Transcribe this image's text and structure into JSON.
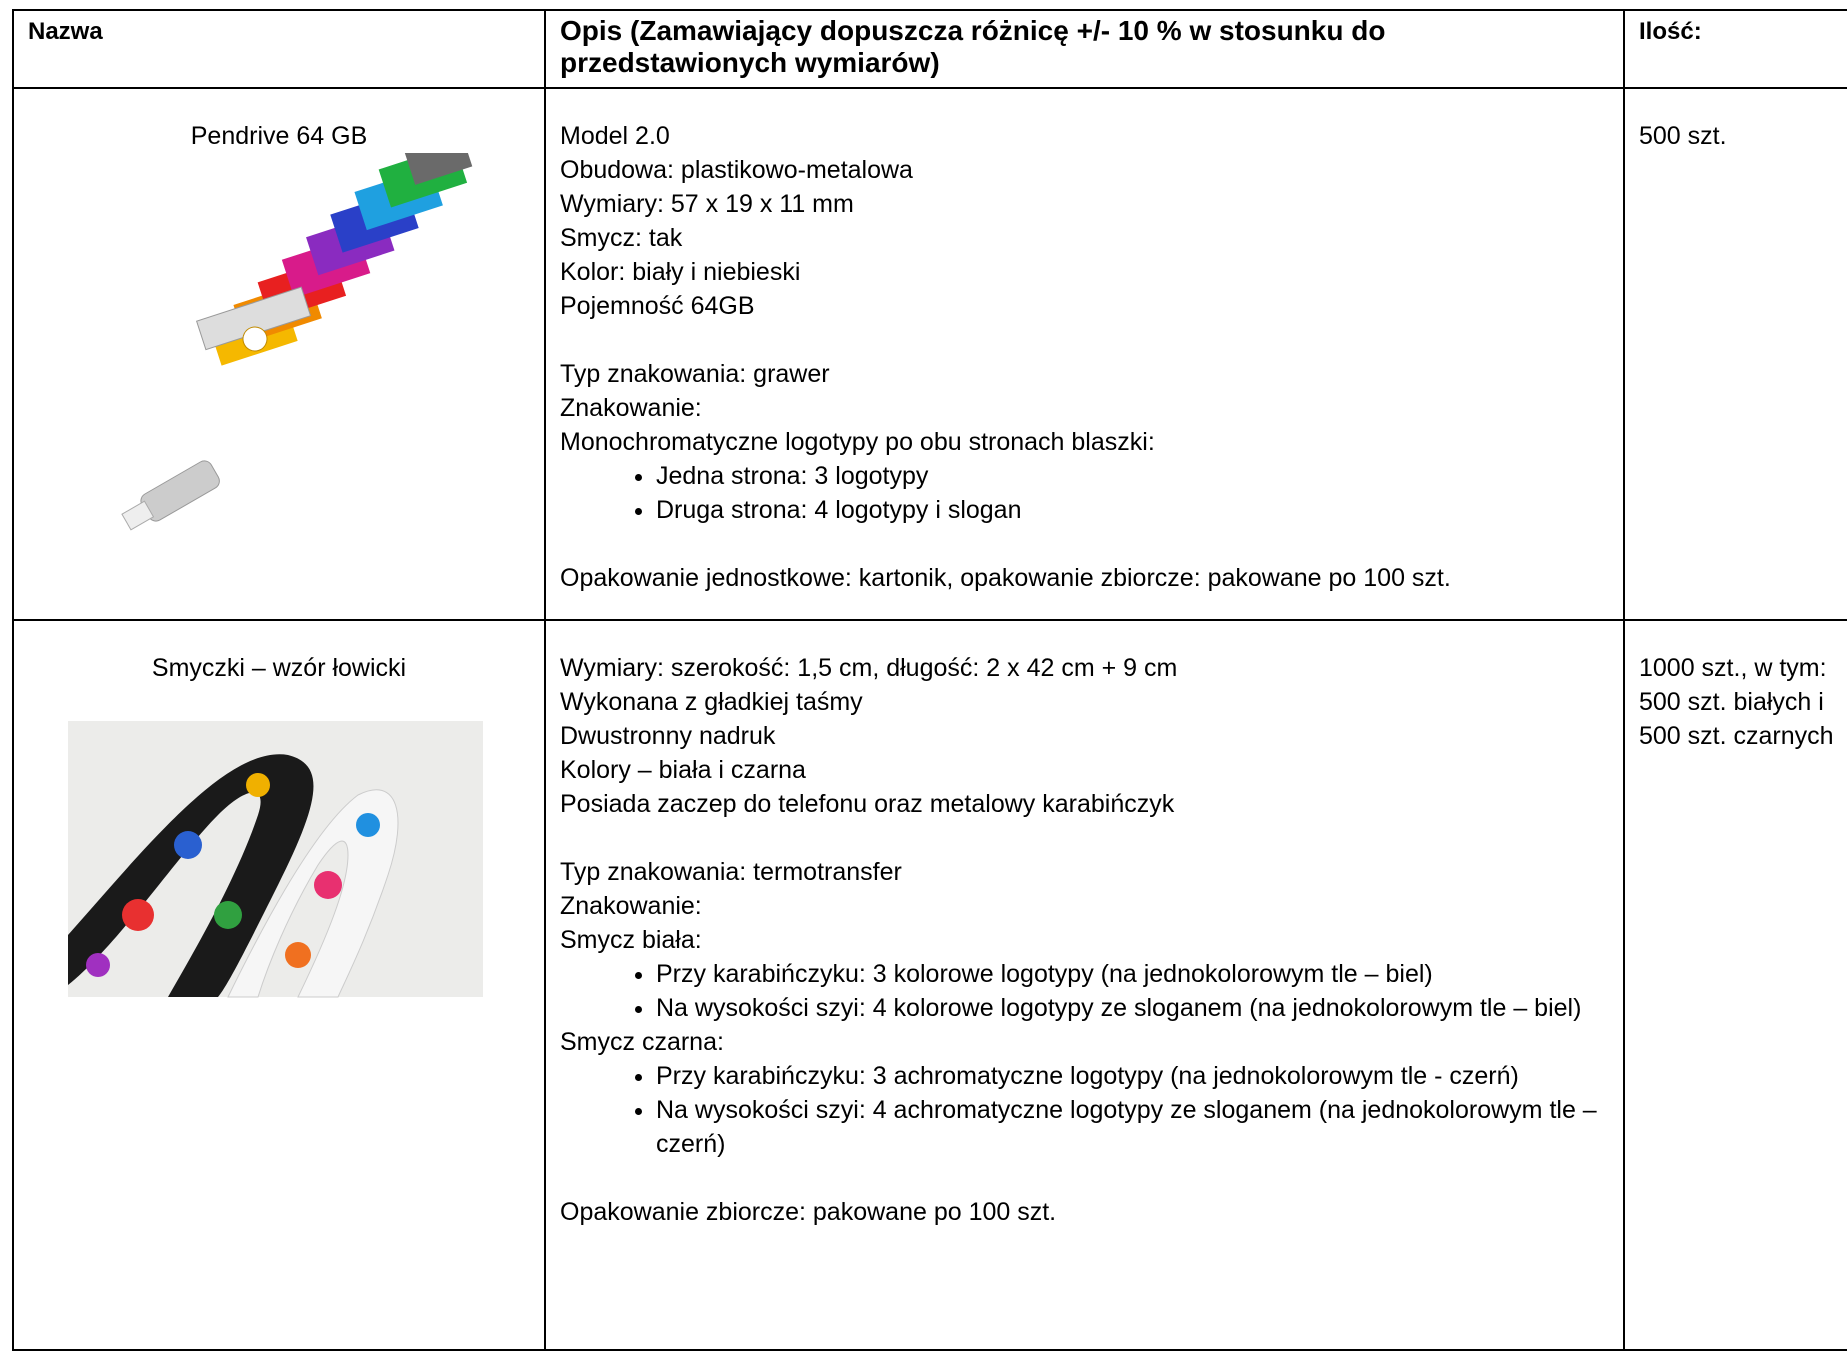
{
  "table": {
    "header": [
      "Nazwa",
      "Opis (Zamawiający dopuszcza różnicę +/- 10 % w stosunku do przedstawionych wymiarów)",
      "Ilość:"
    ],
    "rows": [
      {
        "name": "Pendrive 64 GB",
        "description": [
          [
            "Model 2.0",
            "Obudowa: plastikowo-metalowa",
            "Wymiary: 57 x 19 x 11 mm",
            "Smycz: tak",
            "Kolor: biały i niebieski",
            "Pojemność 64GB"
          ],
          [
            "Typ znakowania: grawer",
            "Znakowanie:",
            "Monochromatyczne logotypy po obu stronach blaszki:",
            {
              "bullets": [
                "Jedna strona: 3 logotypy",
                "Druga strona: 4 logotypy i slogan"
              ]
            }
          ],
          [
            "Opakowanie jednostkowe: kartonik, opakowanie zbiorcze: pakowane po 100 szt."
          ]
        ],
        "quantity": [
          "500 szt."
        ]
      },
      {
        "name": "Smyczki – wzór łowicki",
        "description": [
          [
            "Wymiary: szerokość: 1,5 cm, długość: 2 x 42 cm + 9 cm",
            "Wykonana z gładkiej taśmy",
            "Dwustronny nadruk",
            "Kolory – biała i czarna",
            "Posiada zaczep do telefonu oraz metalowy karabińczyk"
          ],
          [
            "Typ znakowania: termotransfer",
            "Znakowanie:",
            "Smycz biała:",
            {
              "bullets": [
                "Przy karabińczyku: 3 kolorowe logotypy (na jednokolorowym tle – biel)",
                "Na wysokości szyi: 4 kolorowe logotypy ze sloganem (na jednokolorowym tle – biel)"
              ]
            },
            "Smycz czarna:",
            {
              "bullets": [
                "Przy karabińczyku: 3 achromatyczne logotypy (na jednokolorowym tle - czerń)",
                "Na wysokości szyi: 4 achromatyczne logotypy ze sloganem (na jednokolorowym tle – czerń)"
              ]
            }
          ],
          [
            "Opakowanie zbiorcze: pakowane po 100 szt."
          ]
        ],
        "quantity": [
          "1000 szt., w tym:",
          "500 szt. białych i 500 szt. czarnych"
        ]
      }
    ]
  }
}
